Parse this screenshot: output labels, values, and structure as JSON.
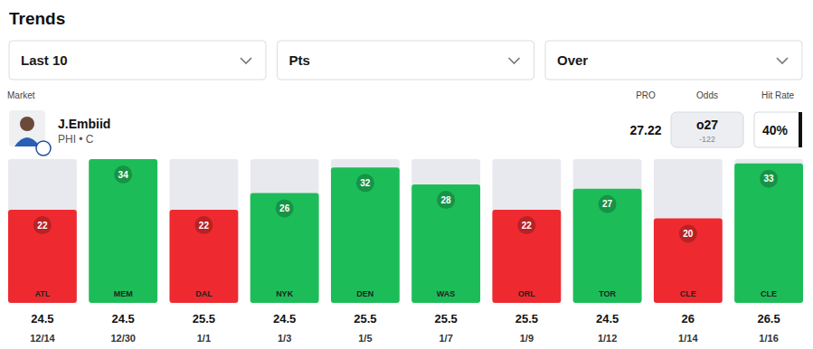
{
  "chart_data": {
    "type": "bar",
    "title": "Trends",
    "categories": [
      "ATL",
      "MEM",
      "DAL",
      "NYK",
      "DEN",
      "WAS",
      "ORL",
      "TOR",
      "CLE",
      "CLE"
    ],
    "values": [
      22,
      34,
      22,
      26,
      32,
      28,
      22,
      27,
      20,
      33
    ],
    "colors": [
      "#ee2a30",
      "#1cbd58",
      "#ee2a30",
      "#1cbd58",
      "#1cbd58",
      "#1cbd58",
      "#ee2a30",
      "#1cbd58",
      "#ee2a30",
      "#1cbd58"
    ],
    "lines": [
      24.5,
      24.5,
      25.5,
      24.5,
      25.5,
      25.5,
      25.5,
      24.5,
      26,
      26.5
    ],
    "dates": [
      "12/14",
      "12/30",
      "1/1",
      "1/3",
      "1/5",
      "1/7",
      "1/9",
      "1/12",
      "1/14",
      "1/16"
    ],
    "ylim": [
      0,
      34
    ],
    "data_labels": true,
    "tick_labels": false
  },
  "controls": [
    "Last 10",
    "Pts",
    "Over"
  ],
  "market": {
    "heading": "Market",
    "player": "J.Embiid",
    "team": "PHI • C",
    "pro_heading": "PRO",
    "pro": 27.22,
    "odds_heading": "Odds",
    "odds": "o27",
    "odds_price": -122,
    "hit_rate_heading": "Hit Rate",
    "hit_rate": "40%"
  }
}
